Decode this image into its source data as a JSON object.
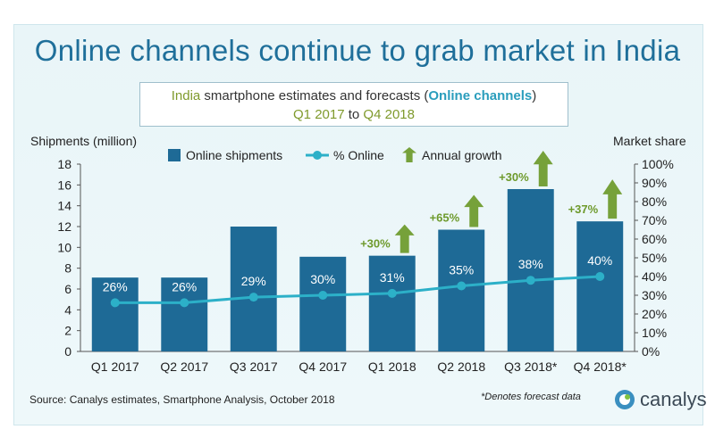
{
  "title": "Online channels continue to grab market in India",
  "subtitle": {
    "part1": "India",
    "part2": " smartphone  estimates and forecasts (",
    "part3": "Online channels",
    "part4": ")",
    "line2a": "Q1 2017",
    "line2b": " to ",
    "line2c": "Q4 2018"
  },
  "source": "Source: Canalys estimates, Smartphone Analysis, October 2018",
  "forecast_note": "*Denotes forecast data",
  "logo_text": "canalys",
  "colors": {
    "bar": "#1e6a96",
    "line": "#2cb0c8",
    "arrow": "#76a13a",
    "growth_text": "#6e9a2c"
  },
  "chart_data": {
    "type": "bar",
    "ylabel": "Shipments (million)",
    "y2label": "Market share",
    "ylim": [
      0,
      18
    ],
    "y2lim": [
      0,
      100
    ],
    "yticks": [
      "0",
      "2",
      "4",
      "6",
      "8",
      "10",
      "12",
      "14",
      "16",
      "18"
    ],
    "y2ticks": [
      "0%",
      "10%",
      "20%",
      "30%",
      "40%",
      "50%",
      "60%",
      "70%",
      "80%",
      "90%",
      "100%"
    ],
    "categories": [
      "Q1 2017",
      "Q2 2017",
      "Q3 2017",
      "Q4 2017",
      "Q1 2018",
      "Q2 2018",
      "Q3 2018*",
      "Q4 2018*"
    ],
    "series": [
      {
        "name": "Online shipments",
        "type": "bar",
        "axis": "left",
        "values": [
          7.1,
          7.1,
          12.0,
          9.1,
          9.2,
          11.7,
          15.6,
          12.5
        ]
      },
      {
        "name": "% Online",
        "type": "line",
        "axis": "right",
        "values": [
          26,
          26,
          29,
          30,
          31,
          35,
          38,
          40
        ]
      }
    ],
    "percent_labels": [
      "26%",
      "26%",
      "29%",
      "30%",
      "31%",
      "35%",
      "38%",
      "40%"
    ],
    "annual_growth": [
      {
        "category": "Q1 2018",
        "label": "+30%"
      },
      {
        "category": "Q2 2018",
        "label": "+65%"
      },
      {
        "category": "Q3 2018*",
        "label": "+30%"
      },
      {
        "category": "Q4 2018*",
        "label": "+37%"
      }
    ],
    "legend": [
      "Online shipments",
      "% Online",
      "Annual growth"
    ],
    "legend_position": "top"
  }
}
